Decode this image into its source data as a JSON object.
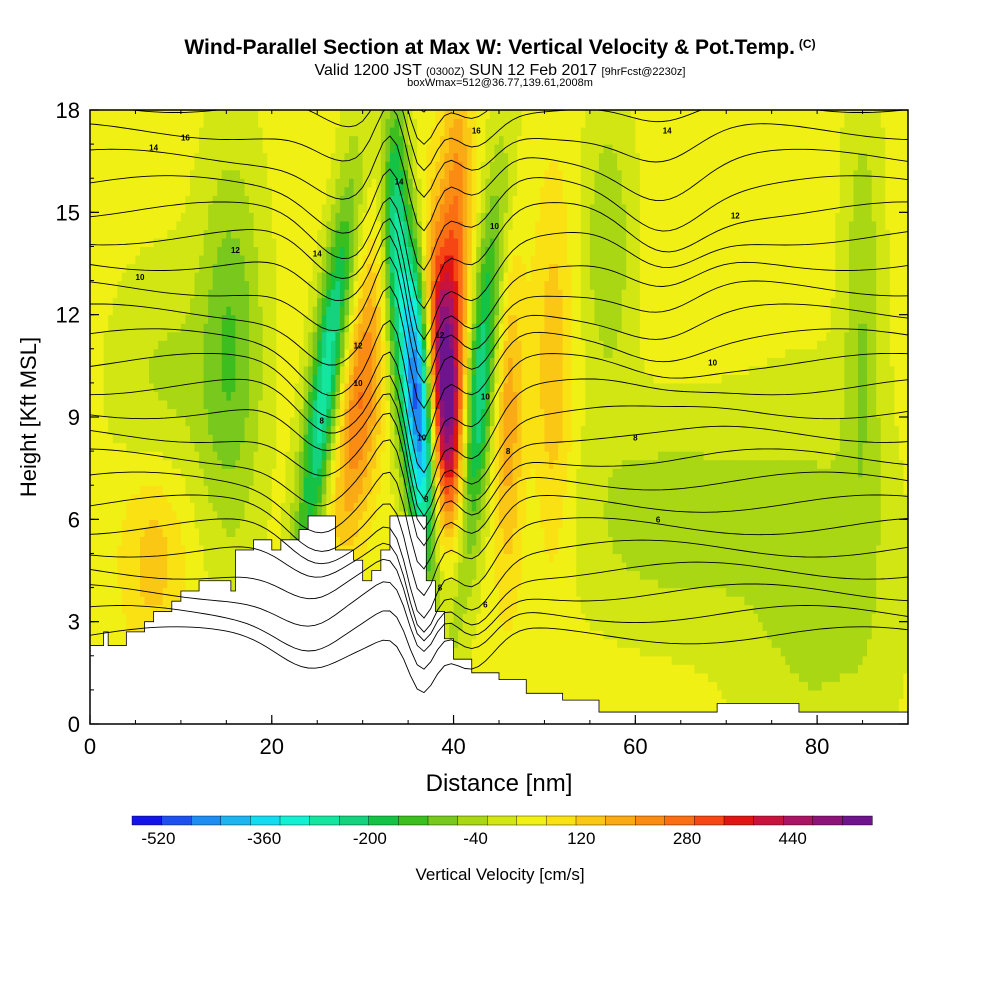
{
  "chart_data": {
    "type": "heatmap",
    "title": "Wind-Parallel Section at Max W: Vertical Velocity & Pot.Temp.",
    "title_tag": "(C)",
    "subtitle_main_a": "Valid 1200 JST",
    "subtitle_small_a": "(0300Z)",
    "subtitle_main_b": "SUN 12 Feb 2017",
    "subtitle_small_b": "[9hrFcst@2230z]",
    "subtitle_line3": "boxWmax=512@36.77,139.61,2008m",
    "xlabel": "Distance [nm]",
    "ylabel": "Height [Kft MSL]",
    "xlim": [
      0,
      90
    ],
    "ylim": [
      0,
      18
    ],
    "x_ticks": [
      0,
      20,
      40,
      60,
      80
    ],
    "y_ticks": [
      0,
      3,
      6,
      9,
      12,
      15,
      18
    ],
    "colorbar": {
      "label": "Vertical Velocity [cm/s]",
      "min": -560,
      "max": 560,
      "ticks": [
        -520,
        -360,
        -200,
        -40,
        120,
        280,
        440
      ],
      "colors": [
        "#1414e6",
        "#1e50f0",
        "#1e8cf0",
        "#1eb4f0",
        "#14dcf0",
        "#14f0d2",
        "#14e6a0",
        "#14d27d",
        "#14c346",
        "#3cbe1e",
        "#78c81e",
        "#aad714",
        "#d2e614",
        "#f0f014",
        "#fae114",
        "#fac814",
        "#faaa14",
        "#fa8c14",
        "#fa6e14",
        "#f54614",
        "#e11414",
        "#c8143c",
        "#aa1464",
        "#8c1478",
        "#6e148c"
      ]
    },
    "contour_labels": [
      {
        "x": 7,
        "y": 16.9,
        "text": "14"
      },
      {
        "x": 10.5,
        "y": 17.2,
        "text": "16"
      },
      {
        "x": 16,
        "y": 13.9,
        "text": "12"
      },
      {
        "x": 5.5,
        "y": 13.1,
        "text": "10"
      },
      {
        "x": 25,
        "y": 13.8,
        "text": "14"
      },
      {
        "x": 29.5,
        "y": 11.1,
        "text": "12"
      },
      {
        "x": 29.5,
        "y": 10.0,
        "text": "10"
      },
      {
        "x": 25.5,
        "y": 8.9,
        "text": "8"
      },
      {
        "x": 34,
        "y": 15.9,
        "text": "14"
      },
      {
        "x": 36.5,
        "y": 8.4,
        "text": "10"
      },
      {
        "x": 37,
        "y": 6.6,
        "text": "8"
      },
      {
        "x": 38.5,
        "y": 11.4,
        "text": "12"
      },
      {
        "x": 38.5,
        "y": 4.0,
        "text": "8"
      },
      {
        "x": 42.5,
        "y": 17.4,
        "text": "16"
      },
      {
        "x": 44.5,
        "y": 14.6,
        "text": "10"
      },
      {
        "x": 43.5,
        "y": 9.6,
        "text": "10"
      },
      {
        "x": 46,
        "y": 8.0,
        "text": "8"
      },
      {
        "x": 43.5,
        "y": 3.5,
        "text": "6"
      },
      {
        "x": 60,
        "y": 8.4,
        "text": "8"
      },
      {
        "x": 62.5,
        "y": 6.0,
        "text": "6"
      },
      {
        "x": 68.5,
        "y": 10.6,
        "text": "10"
      },
      {
        "x": 71,
        "y": 14.9,
        "text": "12"
      },
      {
        "x": 63.5,
        "y": 17.4,
        "text": "14"
      }
    ]
  }
}
